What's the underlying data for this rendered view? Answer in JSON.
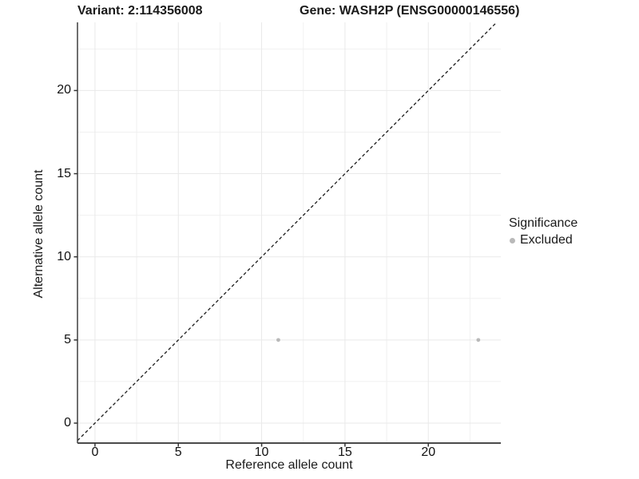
{
  "header": {
    "title_left": "Variant: 2:114356008",
    "title_right": "Gene: WASH2P (ENSG00000146556)"
  },
  "chart_data": {
    "type": "scatter",
    "title": "Variant: 2:114356008  |  Gene: WASH2P (ENSG00000146556)",
    "xlabel": "Reference allele count",
    "ylabel": "Alternative allele count",
    "xlim": [
      -1.05,
      24.35
    ],
    "ylim": [
      -1.2,
      24.1
    ],
    "xticks": [
      0,
      5,
      10,
      15,
      20
    ],
    "yticks": [
      0,
      5,
      10,
      15,
      20
    ],
    "minor_step": 2.5,
    "grid": true,
    "series": [
      {
        "name": "Excluded",
        "color": "#b9b9b9",
        "points": [
          {
            "x": 11,
            "y": 5
          },
          {
            "x": 23,
            "y": 5
          }
        ]
      }
    ],
    "reference_line": {
      "type": "identity",
      "slope": 1,
      "intercept": 0,
      "style": "dashed",
      "color": "#1a1a1a"
    },
    "legend": {
      "title": "Significance",
      "position": "right",
      "items": [
        {
          "label": "Excluded",
          "color": "#b9b9b9"
        }
      ]
    },
    "colors": {
      "background": "#ffffff",
      "panel_background": "#ffffff",
      "grid_major": "#e9e9e9",
      "grid_minor": "#f0f0f0",
      "axis_line": "#4a4a4a",
      "tick_mark": "#333333",
      "text": "#1a1a1a"
    }
  }
}
